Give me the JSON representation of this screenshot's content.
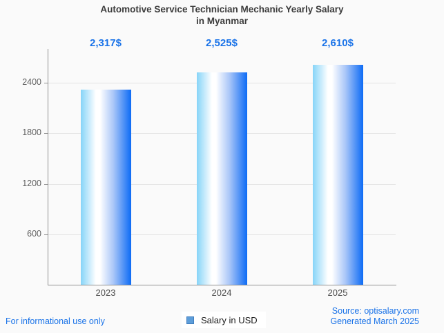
{
  "chart_data": {
    "type": "bar",
    "title": "Automotive Service Technician Mechanic Yearly Salary in Myanmar",
    "title_line1": "Automotive Service Technician Mechanic Yearly Salary",
    "title_line2": "in Myanmar",
    "categories": [
      "2023",
      "2024",
      "2025"
    ],
    "values": [
      2317,
      2525,
      2610
    ],
    "value_labels": [
      "2,317$",
      "2,525$",
      "2,610$"
    ],
    "series_name": "Salary in USD",
    "yticks": [
      600,
      1200,
      1800,
      2400
    ],
    "ylim": [
      0,
      2800
    ],
    "grid": true,
    "legend_position": "bottom"
  },
  "legend": {
    "label": "Salary in USD",
    "marker": "blue-square-icon"
  },
  "footer": {
    "disclaimer": "For informational use only",
    "source": "Source: optisalary.com",
    "generated": "Generated March 2025"
  },
  "colors": {
    "accent_blue": "#1a73e8",
    "background": "#fafafa",
    "bar_gradient_left": "#86d4f8",
    "bar_gradient_middle": "#ffffff",
    "bar_gradient_right": "#0d6bf5",
    "legend_marker_fill": "#5d9dd9",
    "legend_marker_border": "#3f7dbe",
    "grid_line": "#e4e4e4",
    "axis_line": "#8f8f8f",
    "title_text": "#3c3c3c",
    "tick_text": "#5f5f5f"
  }
}
